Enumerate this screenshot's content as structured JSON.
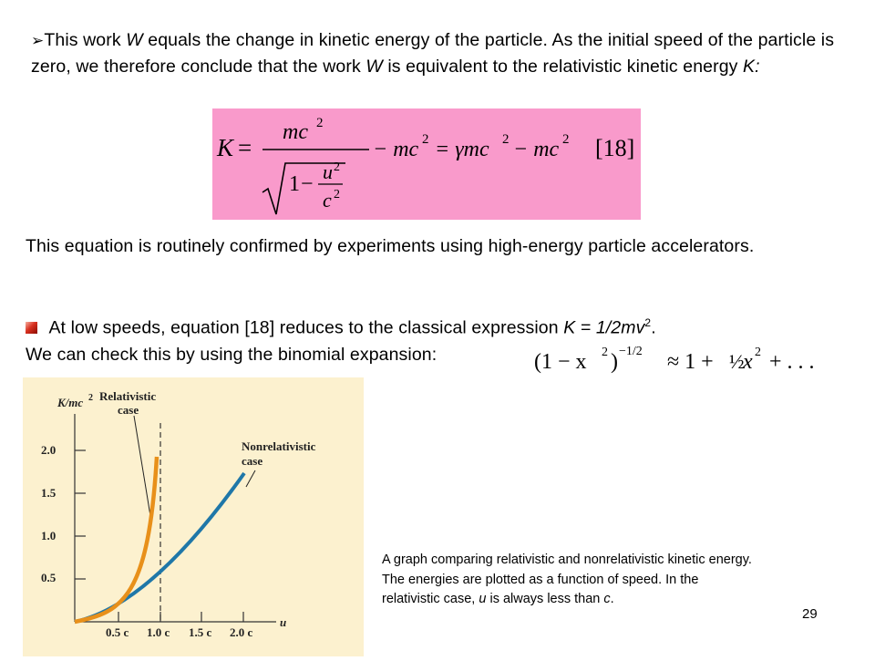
{
  "para1": {
    "bullet_glyph": "➢",
    "s1": "This work ",
    "s2": "W",
    "s3": " equals the change in kinetic energy of the particle. As the initial speed of the particle is zero, we therefore conclude that the work ",
    "s4": "W",
    "s5": " is equivalent to the relativistic kinetic energy ",
    "s6": "K:"
  },
  "equation": {
    "lhs": "K",
    "eq": "=",
    "numerator": "mc",
    "num_exp": "2",
    "rad_one": "1",
    "minus": "−",
    "u": "u",
    "u_exp": "2",
    "c": "c",
    "c_exp": "2",
    "after_frac": "− mc",
    "after_frac_exp": "2",
    "eq2": "= γmc",
    "gamma_exp": "2",
    "tail": "− mc",
    "tail_exp": "2",
    "tag": "[18]",
    "box_color": "#f99acb"
  },
  "para2": "This equation is routinely confirmed by experiments using high-energy particle accelerators.",
  "para3": {
    "t1": " At low speeds, equation [18] reduces to the classical expression ",
    "t2": "K = 1/2mv",
    "t2_sup": "2",
    "t3": ".",
    "line2": "We can check this by using the binomial expansion:"
  },
  "binomial": {
    "open": "(1 − x",
    "x_exp": "2",
    "close": ")",
    "exp": "−1/2",
    "approx": "≈ 1 +",
    "half": "½",
    "x2": "x",
    "x2_exp": "2",
    "plus_dots": "+ . . ."
  },
  "graph": {
    "y_label": "K/mc",
    "y_label_exp": "2",
    "x_label": "u",
    "y_ticks": [
      "2.0",
      "1.5",
      "1.0",
      "0.5"
    ],
    "x_ticks": [
      "0.5 c",
      "1.0 c",
      "1.5 c",
      "2.0 c"
    ],
    "rel_label_1": "Relativistic",
    "rel_label_2": "case",
    "nonrel_label_1": "Nonrelativistic",
    "nonrel_label_2": "case",
    "colors": {
      "background": "#fcf1cf",
      "relativistic": "#e8901a",
      "nonrelativistic": "#1f77a8"
    }
  },
  "caption": {
    "c1": "A graph comparing relativistic and nonrelativistic kinetic energy. The energies are plotted as a function of speed. In the relativistic case, ",
    "c2": "u",
    "c3": " is always less than ",
    "c4": "c",
    "c5": "."
  },
  "page_number": "29"
}
